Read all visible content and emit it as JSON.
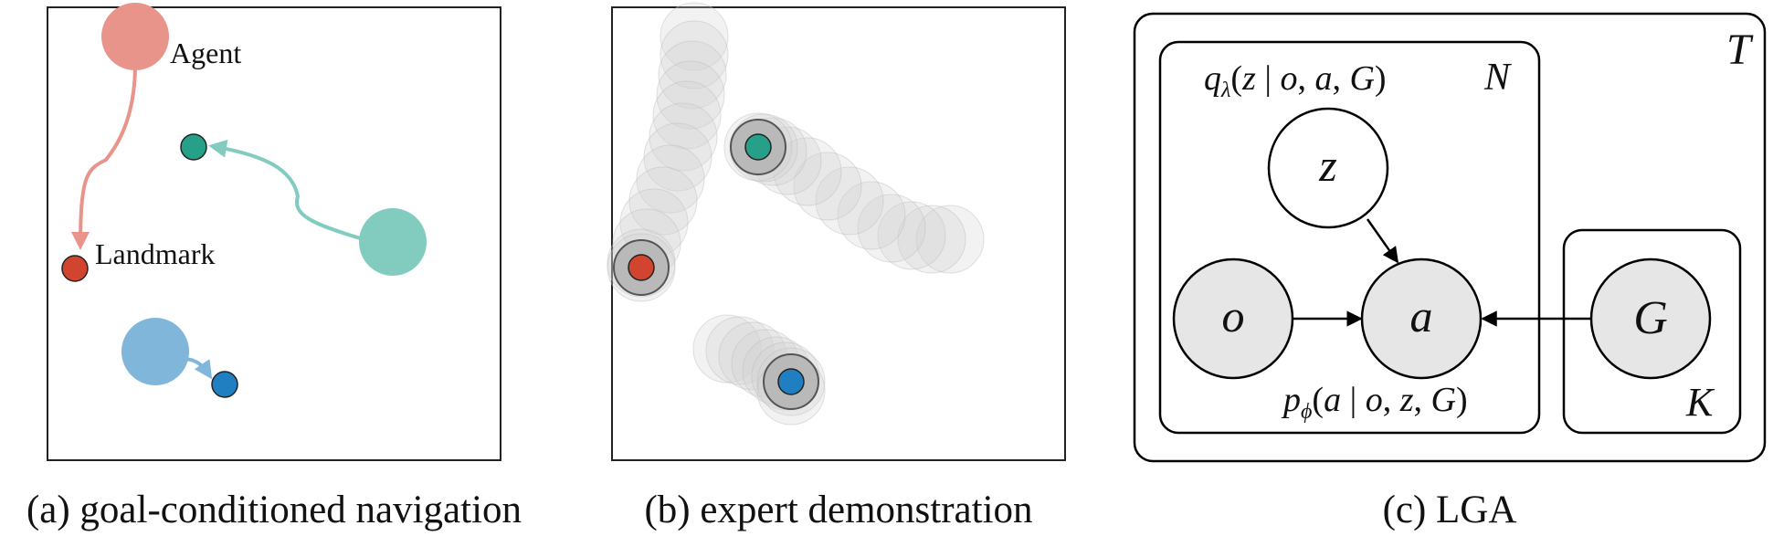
{
  "panels": {
    "a": {
      "caption": "(a) goal-conditioned navigation",
      "agent_label": "Agent",
      "landmark_label": "Landmark"
    },
    "b": {
      "caption": "(b) expert demonstration"
    },
    "c": {
      "caption": "(c) LGA",
      "plate_outer": "T",
      "plate_inner": "N",
      "plate_goal": "K",
      "node_z": "z",
      "node_o": "o",
      "node_a": "a",
      "node_G": "G"
    }
  },
  "colors": {
    "agent_red": "#e8948a",
    "landmark_red": "#d1442f",
    "agent_teal": "#82ccbf",
    "landmark_teal": "#27a08a",
    "agent_blue": "#7fb6da",
    "landmark_blue": "#1f7fc0",
    "observed_fill": "#e6e6e6"
  }
}
